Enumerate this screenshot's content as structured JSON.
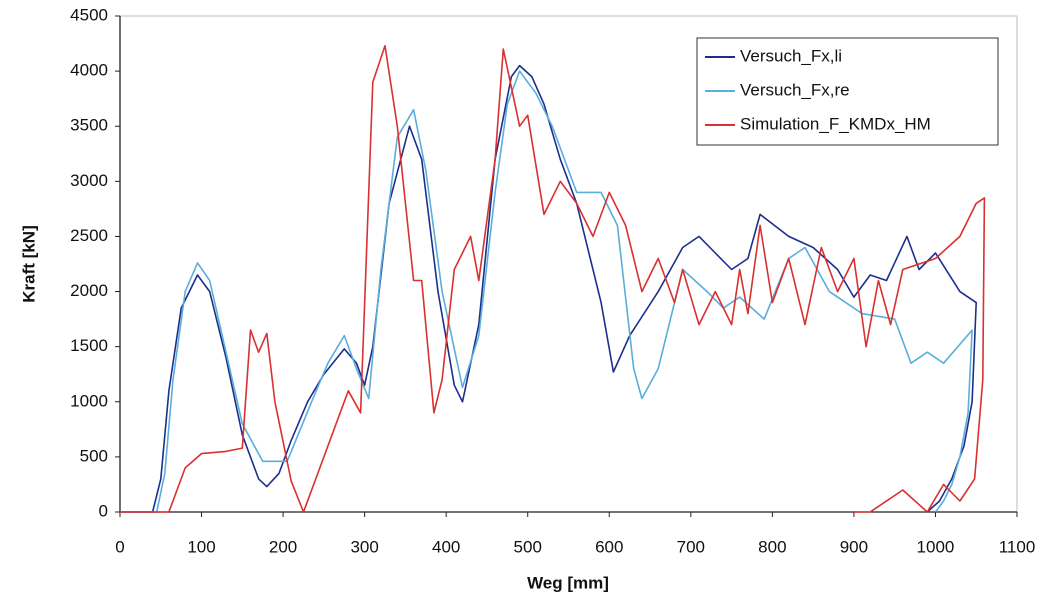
{
  "chart_data": {
    "type": "line",
    "xlabel": "Weg [mm]",
    "ylabel": "Kraft [kN]",
    "xlim": [
      0,
      1100
    ],
    "xticks": [
      0,
      100,
      200,
      300,
      400,
      500,
      600,
      700,
      800,
      900,
      1000,
      1100
    ],
    "ylim": [
      0,
      4500
    ],
    "yticks": [
      0,
      500,
      1000,
      1500,
      2000,
      2500,
      3000,
      3500,
      4000,
      4500
    ],
    "grid": false,
    "legend": "upper right",
    "series": [
      {
        "name": "Versuch_Fx,li",
        "color": "#1c2f8c",
        "x": [
          0,
          40,
          50,
          60,
          75,
          95,
          110,
          130,
          150,
          170,
          180,
          195,
          210,
          230,
          250,
          275,
          290,
          300,
          310,
          330,
          355,
          370,
          390,
          410,
          420,
          440,
          460,
          480,
          490,
          505,
          520,
          540,
          560,
          590,
          605,
          625,
          660,
          690,
          710,
          730,
          750,
          770,
          785,
          820,
          850,
          880,
          900,
          920,
          940,
          965,
          980,
          1000,
          1030,
          1050,
          1045,
          1035,
          1020,
          1005,
          990
        ],
        "values": [
          0,
          0,
          300,
          1100,
          1850,
          2150,
          2000,
          1400,
          700,
          300,
          230,
          350,
          650,
          1000,
          1250,
          1480,
          1350,
          1150,
          1500,
          2800,
          3500,
          3200,
          2000,
          1150,
          1000,
          1700,
          3200,
          3950,
          4050,
          3950,
          3700,
          3200,
          2800,
          1900,
          1270,
          1600,
          2000,
          2400,
          2500,
          2350,
          2200,
          2300,
          2700,
          2500,
          2400,
          2200,
          1950,
          2150,
          2100,
          2500,
          2200,
          2350,
          2000,
          1900,
          1000,
          600,
          300,
          100,
          0
        ]
      },
      {
        "name": "Versuch_Fx,re",
        "color": "#5aaedc",
        "x": [
          0,
          45,
          55,
          65,
          80,
          95,
          110,
          130,
          150,
          175,
          205,
          235,
          255,
          275,
          290,
          305,
          320,
          340,
          360,
          375,
          395,
          420,
          440,
          460,
          475,
          490,
          510,
          530,
          560,
          590,
          610,
          630,
          640,
          660,
          690,
          720,
          740,
          760,
          790,
          820,
          840,
          870,
          910,
          950,
          970,
          990,
          1010,
          1045,
          1040,
          1030,
          1020,
          1010,
          1000
        ],
        "values": [
          0,
          0,
          350,
          1200,
          2000,
          2260,
          2100,
          1450,
          800,
          460,
          460,
          1000,
          1350,
          1600,
          1300,
          1030,
          2200,
          3400,
          3650,
          3100,
          2000,
          1130,
          1600,
          2900,
          3700,
          4000,
          3800,
          3500,
          2900,
          2900,
          2600,
          1300,
          1030,
          1300,
          2200,
          2000,
          1850,
          1950,
          1750,
          2300,
          2400,
          2000,
          1800,
          1750,
          1350,
          1450,
          1350,
          1650,
          900,
          500,
          250,
          100,
          0
        ]
      },
      {
        "name": "Simulation_F_KMDx_HM",
        "color": "#d93030",
        "x": [
          0,
          60,
          80,
          100,
          130,
          150,
          160,
          170,
          180,
          190,
          210,
          225,
          250,
          280,
          295,
          310,
          325,
          340,
          360,
          370,
          385,
          395,
          410,
          430,
          440,
          460,
          470,
          490,
          500,
          520,
          540,
          560,
          580,
          600,
          620,
          640,
          660,
          680,
          690,
          710,
          730,
          750,
          760,
          770,
          785,
          800,
          820,
          840,
          860,
          880,
          900,
          915,
          930,
          945,
          960,
          1000,
          1030,
          1050,
          1060,
          1058,
          1048,
          1030,
          1010,
          990,
          960,
          920,
          900
        ],
        "values": [
          0,
          0,
          400,
          530,
          550,
          580,
          1650,
          1450,
          1620,
          1000,
          280,
          0,
          500,
          1100,
          900,
          3900,
          4230,
          3500,
          2100,
          2100,
          900,
          1200,
          2200,
          2500,
          2100,
          3200,
          4200,
          3500,
          3600,
          2700,
          3000,
          2800,
          2500,
          2900,
          2600,
          2000,
          2300,
          1900,
          2200,
          1700,
          2000,
          1700,
          2200,
          1800,
          2600,
          1900,
          2300,
          1700,
          2400,
          2000,
          2300,
          1500,
          2100,
          1700,
          2200,
          2300,
          2500,
          2800,
          2850,
          1200,
          300,
          100,
          250,
          0,
          200,
          0,
          0
        ]
      }
    ]
  }
}
